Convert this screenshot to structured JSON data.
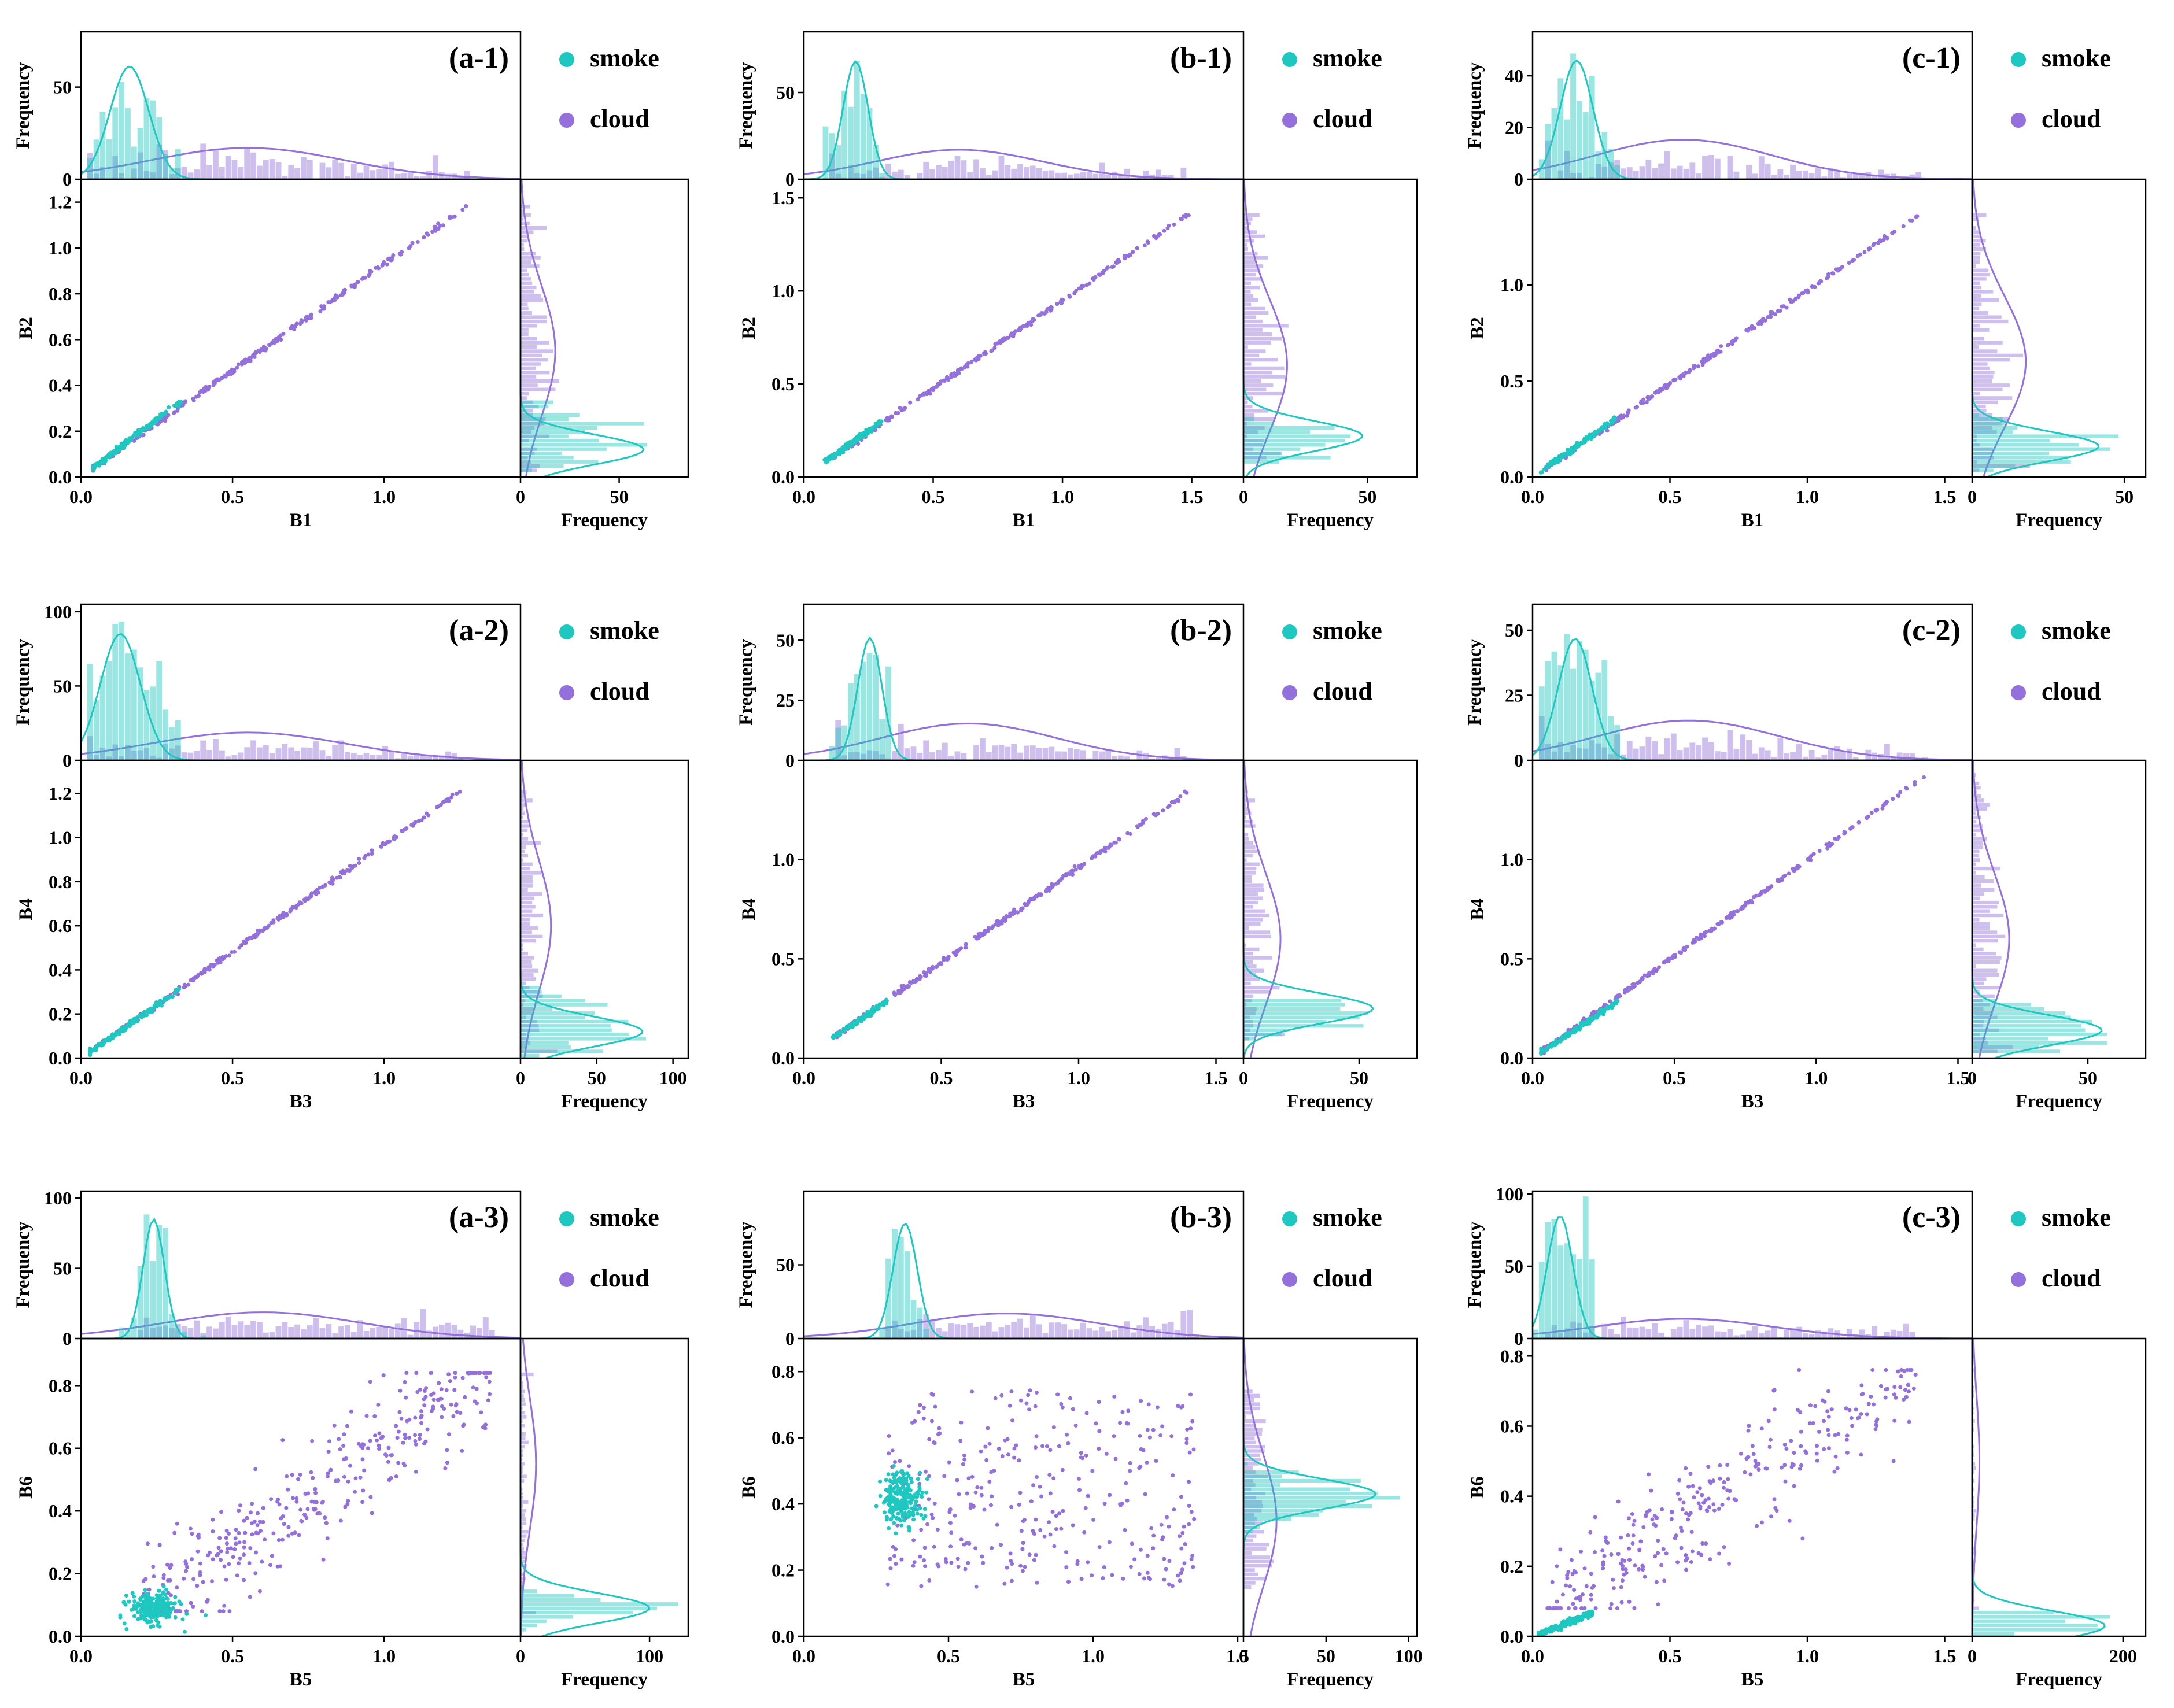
{
  "colors": {
    "smoke": "#1ec8c0",
    "cloud": "#9370db"
  },
  "legend": {
    "smoke": "smoke",
    "cloud": "cloud"
  },
  "chart_data": [
    {
      "panel": "(a-1)",
      "type": "scatter",
      "xlabel": "B1",
      "ylabel": "B2",
      "top_ylabel": "Frequency",
      "right_xlabel": "Frequency",
      "xlim": [
        0,
        1.45
      ],
      "ylim": [
        0,
        1.3
      ],
      "xticks": [
        0,
        0.5,
        1.0
      ],
      "yticks": [
        0,
        0.2,
        0.4,
        0.6,
        0.8,
        1.0,
        1.2
      ],
      "top_ylim": [
        0,
        80
      ],
      "top_yticks": [
        0,
        50
      ],
      "right_xlim": [
        0,
        85
      ],
      "right_xticks": [
        0,
        50
      ],
      "smoke": {
        "x_range": [
          0.04,
          0.33
        ],
        "slope": 1.0,
        "hist_peak": 72,
        "x_mode": 0.16,
        "y_mode": 0.12,
        "hist_peak_y": 78
      },
      "cloud": {
        "x_range": [
          0.04,
          1.27
        ],
        "slope": 0.93,
        "hist_peak": 20,
        "x_mode": 0.55,
        "y_mode": 0.55,
        "hist_peak_y": 22
      }
    },
    {
      "panel": "(b-1)",
      "type": "scatter",
      "xlabel": "B1",
      "ylabel": "B2",
      "top_ylabel": "Frequency",
      "right_xlabel": "Frequency",
      "xlim": [
        0,
        1.7
      ],
      "ylim": [
        0,
        1.6
      ],
      "xticks": [
        0,
        0.5,
        1.0,
        1.5
      ],
      "yticks": [
        0,
        0.5,
        1.0,
        1.5
      ],
      "top_ylim": [
        0,
        85
      ],
      "top_yticks": [
        0,
        50
      ],
      "right_xlim": [
        0,
        70
      ],
      "right_xticks": [
        0,
        50
      ],
      "smoke": {
        "x_range": [
          0.08,
          0.3
        ],
        "slope": 1.0,
        "hist_peak": 80,
        "x_mode": 0.2,
        "y_mode": 0.22,
        "hist_peak_y": 60
      },
      "cloud": {
        "x_range": [
          0.12,
          1.5
        ],
        "slope": 0.95,
        "hist_peak": 20,
        "x_mode": 0.6,
        "y_mode": 0.6,
        "hist_peak_y": 22
      }
    },
    {
      "panel": "(c-1)",
      "type": "scatter",
      "xlabel": "B1",
      "ylabel": "B2",
      "top_ylabel": "Frequency",
      "right_xlabel": "Frequency",
      "xlim": [
        0,
        1.6
      ],
      "ylim": [
        0,
        1.55
      ],
      "xticks": [
        0,
        0.5,
        1.0,
        1.5
      ],
      "yticks": [
        0,
        0.5,
        1.0
      ],
      "top_ylim": [
        0,
        57
      ],
      "top_yticks": [
        0,
        20,
        40
      ],
      "right_xlim": [
        0,
        57
      ],
      "right_xticks": [
        0,
        50
      ],
      "smoke": {
        "x_range": [
          0.03,
          0.3
        ],
        "slope": 1.0,
        "hist_peak": 54,
        "x_mode": 0.16,
        "y_mode": 0.16,
        "hist_peak_y": 52
      },
      "cloud": {
        "x_range": [
          0.05,
          1.4
        ],
        "slope": 0.97,
        "hist_peak": 18,
        "x_mode": 0.55,
        "y_mode": 0.6,
        "hist_peak_y": 22
      }
    },
    {
      "panel": "(a-2)",
      "type": "scatter",
      "xlabel": "B3",
      "ylabel": "B4",
      "top_ylabel": "Frequency",
      "right_xlabel": "Frequency",
      "xlim": [
        0,
        1.45
      ],
      "ylim": [
        0,
        1.35
      ],
      "xticks": [
        0,
        0.5,
        1.0
      ],
      "yticks": [
        0,
        0.2,
        0.4,
        0.6,
        0.8,
        1.0,
        1.2
      ],
      "top_ylim": [
        0,
        105
      ],
      "top_yticks": [
        0,
        50,
        100
      ],
      "right_xlim": [
        0,
        110
      ],
      "right_xticks": [
        0,
        50,
        100
      ],
      "smoke": {
        "x_range": [
          0.03,
          0.33
        ],
        "slope": 0.95,
        "hist_peak": 100,
        "x_mode": 0.13,
        "y_mode": 0.12,
        "hist_peak_y": 100
      },
      "cloud": {
        "x_range": [
          0.03,
          1.25
        ],
        "slope": 0.97,
        "hist_peak": 22,
        "x_mode": 0.55,
        "y_mode": 0.6,
        "hist_peak_y": 25
      }
    },
    {
      "panel": "(b-2)",
      "type": "scatter",
      "xlabel": "B3",
      "ylabel": "B4",
      "top_ylabel": "Frequency",
      "right_xlabel": "Frequency",
      "xlim": [
        0,
        1.6
      ],
      "ylim": [
        0,
        1.5
      ],
      "xticks": [
        0,
        0.5,
        1.0,
        1.5
      ],
      "yticks": [
        0,
        0.5,
        1.0
      ],
      "top_ylim": [
        0,
        65
      ],
      "top_yticks": [
        0,
        25,
        50
      ],
      "right_xlim": [
        0,
        75
      ],
      "right_xticks": [
        0,
        50
      ],
      "smoke": {
        "x_range": [
          0.1,
          0.3
        ],
        "slope": 0.95,
        "hist_peak": 60,
        "x_mode": 0.24,
        "y_mode": 0.25,
        "hist_peak_y": 70
      },
      "cloud": {
        "x_range": [
          0.12,
          1.4
        ],
        "slope": 0.96,
        "hist_peak": 18,
        "x_mode": 0.6,
        "y_mode": 0.6,
        "hist_peak_y": 20
      }
    },
    {
      "panel": "(c-2)",
      "type": "scatter",
      "xlabel": "B3",
      "ylabel": "B4",
      "top_ylabel": "Frequency",
      "right_xlabel": "Frequency",
      "xlim": [
        0,
        1.55
      ],
      "ylim": [
        0,
        1.5
      ],
      "xticks": [
        0,
        0.5,
        1.0,
        1.5
      ],
      "yticks": [
        0,
        0.5,
        1.0
      ],
      "top_ylim": [
        0,
        60
      ],
      "top_yticks": [
        0,
        25,
        50
      ],
      "right_xlim": [
        0,
        75
      ],
      "right_xticks": [
        0,
        50
      ],
      "smoke": {
        "x_range": [
          0.03,
          0.3
        ],
        "slope": 0.95,
        "hist_peak": 55,
        "x_mode": 0.15,
        "y_mode": 0.14,
        "hist_peak_y": 70
      },
      "cloud": {
        "x_range": [
          0.04,
          1.38
        ],
        "slope": 1.03,
        "hist_peak": 18,
        "x_mode": 0.55,
        "y_mode": 0.6,
        "hist_peak_y": 20
      }
    },
    {
      "panel": "(a-3)",
      "type": "scatter",
      "xlabel": "B5",
      "ylabel": "B6",
      "top_ylabel": "Frequency",
      "right_xlabel": "Frequency",
      "xlim": [
        0,
        1.45
      ],
      "ylim": [
        0,
        0.95
      ],
      "xticks": [
        0,
        0.5,
        1.0
      ],
      "yticks": [
        0,
        0.2,
        0.4,
        0.6,
        0.8
      ],
      "top_ylim": [
        0,
        105
      ],
      "top_yticks": [
        0,
        50,
        100
      ],
      "right_xlim": [
        0,
        130
      ],
      "right_xticks": [
        0,
        100
      ],
      "smoke": {
        "x_range": [
          0.14,
          0.3
        ],
        "y_range": [
          0.05,
          0.16
        ],
        "hist_peak": 100,
        "x_mode": 0.24,
        "y_mode": 0.09,
        "hist_peak_y": 125
      },
      "cloud": {
        "x_range": [
          0.2,
          1.35
        ],
        "y_range": [
          0.08,
          0.84
        ],
        "hist_peak": 22,
        "x_mode": 0.6,
        "y_mode": 0.55,
        "hist_peak_y": 15
      }
    },
    {
      "panel": "(b-3)",
      "type": "scatter",
      "xlabel": "B5",
      "ylabel": "B6",
      "top_ylabel": "Frequency",
      "right_xlabel": "Frequency",
      "xlim": [
        0,
        1.52
      ],
      "ylim": [
        0,
        0.9
      ],
      "xticks": [
        0,
        0.5,
        1.0,
        1.5
      ],
      "yticks": [
        0,
        0.2,
        0.4,
        0.6,
        0.8
      ],
      "top_ylim": [
        0,
        100
      ],
      "top_yticks": [
        0,
        50
      ],
      "right_xlim": [
        0,
        105
      ],
      "right_xticks": [
        0,
        50,
        100
      ],
      "smoke": {
        "x_range": [
          0.24,
          0.43
        ],
        "y_range": [
          0.3,
          0.5
        ],
        "hist_peak": 92,
        "x_mode": 0.35,
        "y_mode": 0.43,
        "hist_peak_y": 100
      },
      "cloud": {
        "x_range": [
          0.28,
          1.35
        ],
        "y_range": [
          0.15,
          0.75
        ],
        "hist_peak": 20,
        "x_mode": 0.7,
        "y_mode": 0.35,
        "hist_peak_y": 25
      }
    },
    {
      "panel": "(c-3)",
      "type": "scatter",
      "xlabel": "B5",
      "ylabel": "B6",
      "top_ylabel": "Frequency",
      "right_xlabel": "Frequency",
      "xlim": [
        0,
        1.6
      ],
      "ylim": [
        0,
        0.85
      ],
      "xticks": [
        0,
        0.5,
        1.0,
        1.5
      ],
      "yticks": [
        0,
        0.2,
        0.4,
        0.6,
        0.8
      ],
      "top_ylim": [
        0,
        102
      ],
      "top_yticks": [
        0,
        50,
        100
      ],
      "right_xlim": [
        0,
        230
      ],
      "right_xticks": [
        0,
        200
      ],
      "smoke": {
        "x_range": [
          0.01,
          0.22
        ],
        "y_range": [
          0.0,
          0.07
        ],
        "hist_peak": 100,
        "x_mode": 0.1,
        "y_mode": 0.03,
        "hist_peak_y": 220
      },
      "cloud": {
        "x_range": [
          0.05,
          1.4
        ],
        "y_range": [
          0.08,
          0.76
        ],
        "hist_peak": 16,
        "x_mode": 0.55,
        "y_mode": 0.5,
        "hist_peak_y": 12
      }
    }
  ]
}
